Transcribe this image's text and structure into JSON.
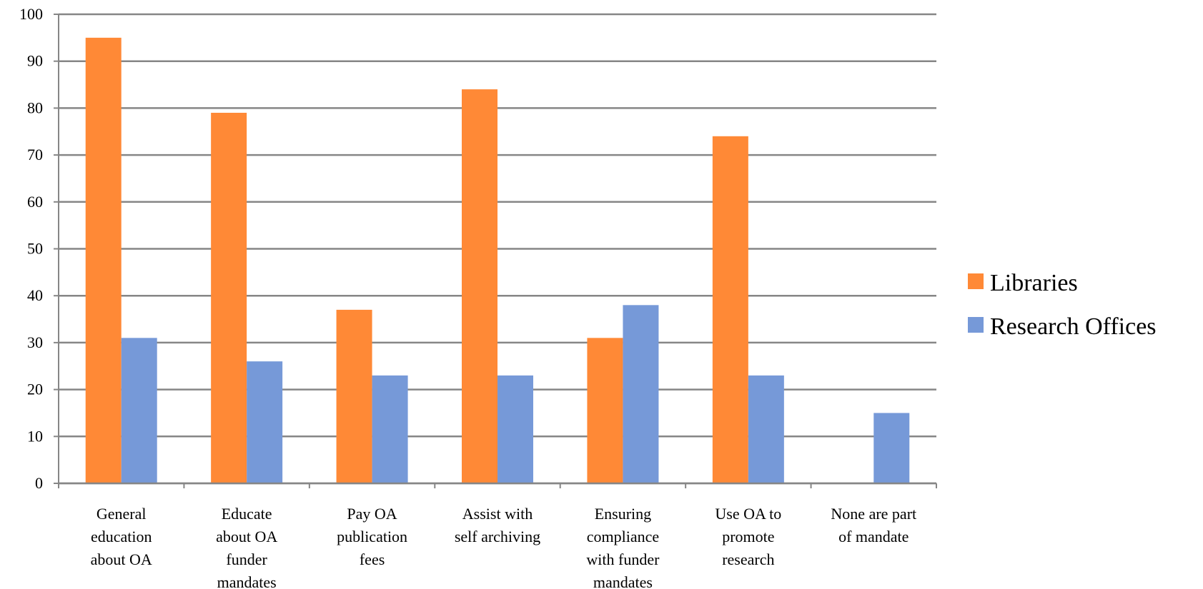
{
  "chart_data": {
    "type": "bar",
    "title": "",
    "xlabel": "",
    "ylabel": "",
    "ylim": [
      0,
      100
    ],
    "yticks": [
      0,
      10,
      20,
      30,
      40,
      50,
      60,
      70,
      80,
      90,
      100
    ],
    "grid": true,
    "legend_position": "right",
    "categories": [
      [
        "General",
        "education",
        "about OA"
      ],
      [
        "Educate",
        "about OA",
        "funder",
        "mandates"
      ],
      [
        "Pay OA",
        "publication",
        "fees"
      ],
      [
        "Assist with",
        "self archiving"
      ],
      [
        "Ensuring",
        "compliance",
        "with funder",
        "mandates"
      ],
      [
        "Use OA to",
        "promote",
        "research"
      ],
      [
        "None are part",
        "of mandate"
      ]
    ],
    "series": [
      {
        "name": "Libraries",
        "color": "#FF8936",
        "values": [
          95,
          79,
          37,
          84,
          31,
          74,
          0
        ]
      },
      {
        "name": "Research Offices",
        "color": "#7699D8",
        "values": [
          31,
          26,
          23,
          23,
          38,
          23,
          15
        ]
      }
    ]
  }
}
